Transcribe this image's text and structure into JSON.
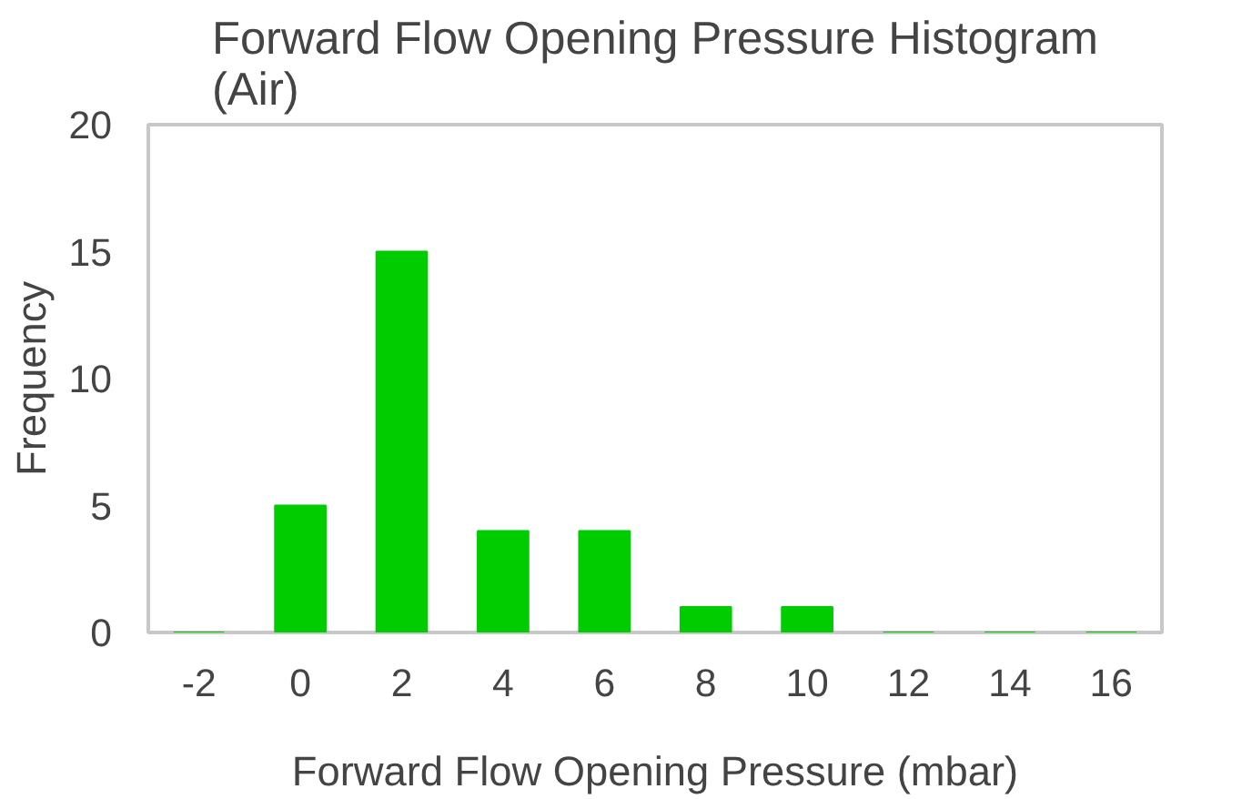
{
  "chart_data": {
    "type": "bar",
    "title": "Forward Flow Opening Pressure Histogram\n(Air)",
    "xlabel": "Forward Flow Opening Pressure (mbar)",
    "ylabel": "Frequency",
    "categories": [
      "-2",
      "0",
      "2",
      "4",
      "6",
      "8",
      "10",
      "12",
      "14",
      "16"
    ],
    "values": [
      0,
      5,
      15,
      4,
      4,
      1,
      1,
      0,
      0,
      0
    ],
    "color": "#00cc00",
    "ylim": [
      0,
      20
    ],
    "yticks": [
      0,
      5,
      10,
      15,
      20
    ],
    "grid": false
  }
}
